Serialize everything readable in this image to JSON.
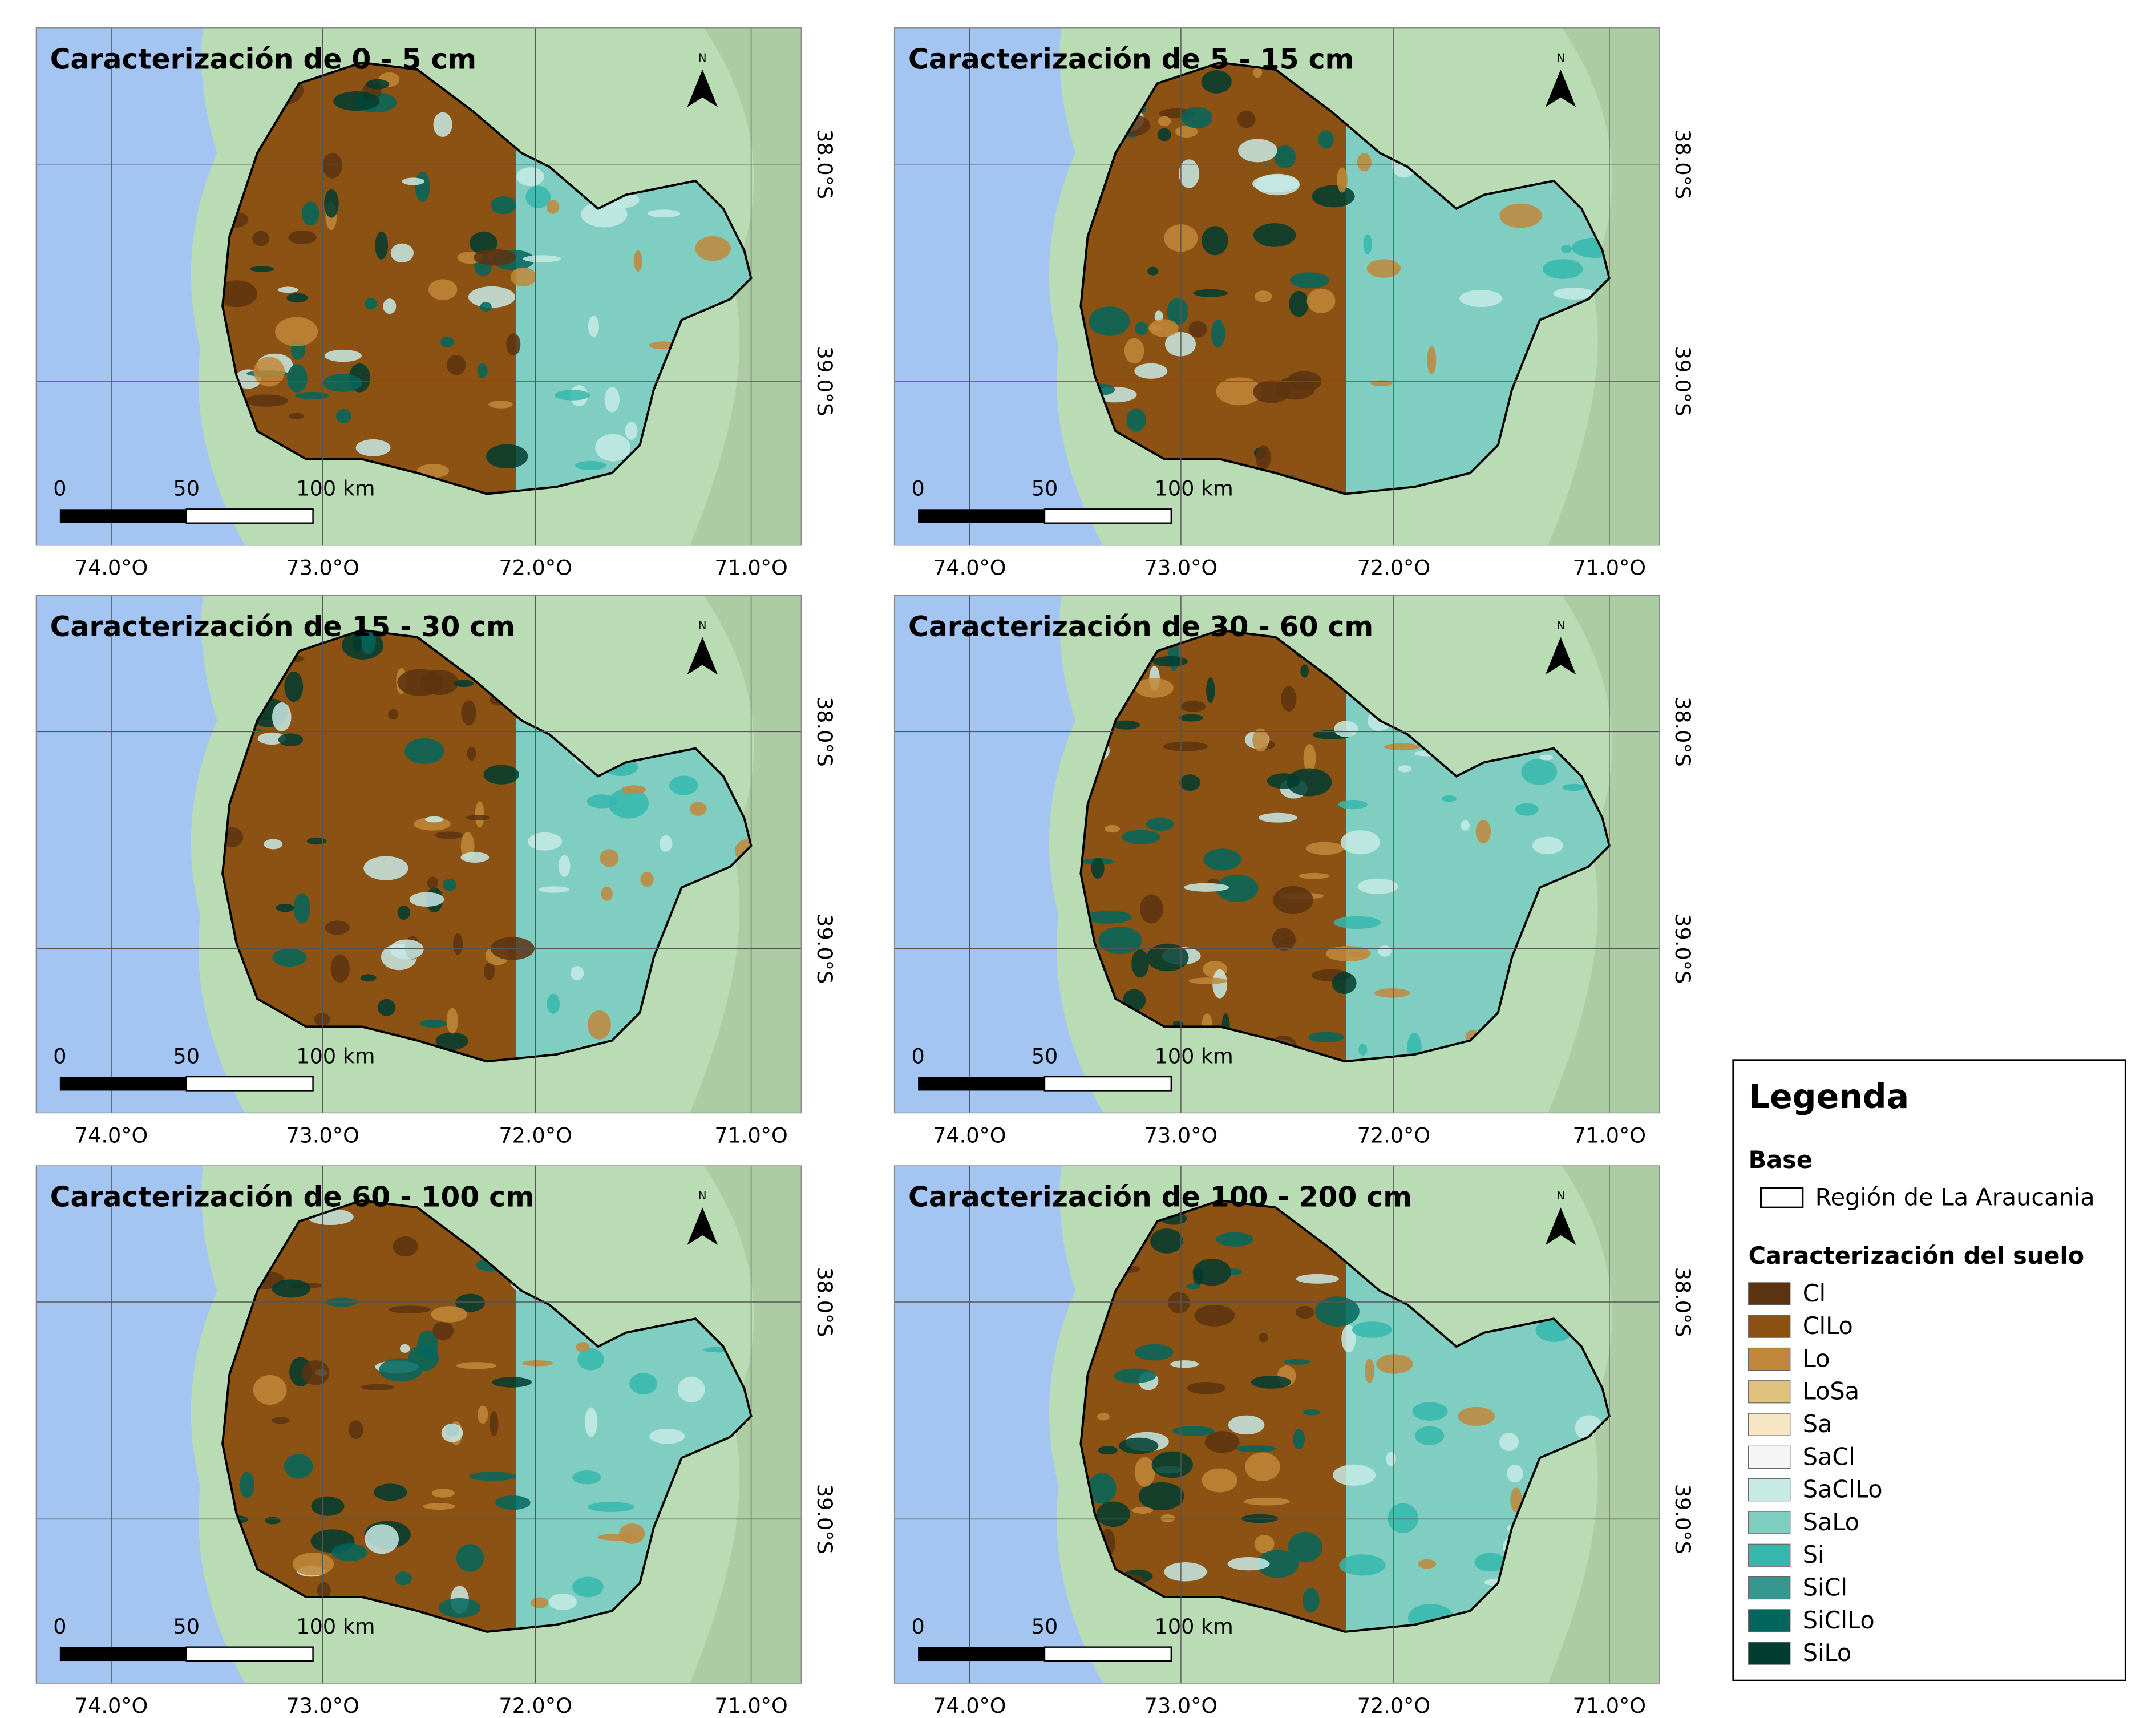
{
  "panels": [
    {
      "title": "Caracterización de 0 - 5 cm"
    },
    {
      "title": "Caracterización de 5 - 15 cm"
    },
    {
      "title": "Caracterización de 15 - 30 cm"
    },
    {
      "title": "Caracterización de 30 - 60 cm"
    },
    {
      "title": "Caracterización de 60 - 100 cm"
    },
    {
      "title": "Caracterización de 100 - 200 cm"
    }
  ],
  "axes": {
    "x_labels": [
      "74.0°O",
      "73.0°O",
      "72.0°O",
      "71.0°O"
    ],
    "y_labels": [
      "38.0°S",
      "39.0°S"
    ]
  },
  "scale_bar": {
    "labels": [
      "0",
      "50",
      "100 km"
    ]
  },
  "north": "N",
  "legend": {
    "title": "Legenda",
    "base_heading": "Base",
    "base_item": "Región de La Araucania",
    "soil_heading": "Caracterización del suelo",
    "classes": [
      {
        "name": "Cl",
        "color": "#5c3310"
      },
      {
        "name": "ClLo",
        "color": "#8b5213"
      },
      {
        "name": "Lo",
        "color": "#c1873a"
      },
      {
        "name": "LoSa",
        "color": "#dfc27d"
      },
      {
        "name": "Sa",
        "color": "#f6e6c3"
      },
      {
        "name": "SaCl",
        "color": "#f5f5f5"
      },
      {
        "name": "SaClLo",
        "color": "#c7eae5"
      },
      {
        "name": "SaLo",
        "color": "#80cdc1"
      },
      {
        "name": "Si",
        "color": "#35b7ad"
      },
      {
        "name": "SiCl",
        "color": "#35978f"
      },
      {
        "name": "SiClLo",
        "color": "#01665e"
      },
      {
        "name": "SiLo",
        "color": "#003c30"
      }
    ]
  }
}
